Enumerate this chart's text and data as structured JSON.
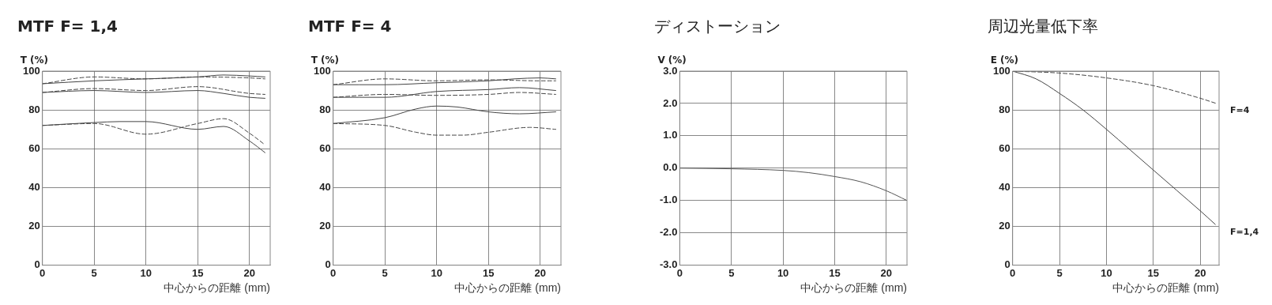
{
  "chart_data": [
    {
      "type": "line",
      "title": "MTF F= 1,4",
      "ylabel": "T (%)",
      "xlabel": "中心からの距離 (mm)",
      "xlim": [
        0,
        22
      ],
      "xticks": [
        0,
        5,
        10,
        15,
        20
      ],
      "ylim": [
        0,
        100
      ],
      "yticks": [
        0,
        20,
        40,
        60,
        80,
        100
      ],
      "grid": true,
      "legend": false,
      "marker": "none",
      "series": [
        {
          "color": "#444444",
          "line_style": "solid",
          "x": [
            0,
            5,
            10,
            15,
            17.5,
            20,
            21.5
          ],
          "values": [
            93.5,
            95,
            96,
            97,
            98,
            97.5,
            97
          ]
        },
        {
          "color": "#444444",
          "line_style": "dashed",
          "x": [
            0,
            5,
            10,
            15,
            20,
            21.5
          ],
          "values": [
            93.5,
            97,
            96,
            97,
            96.5,
            96
          ]
        },
        {
          "color": "#444444",
          "line_style": "solid",
          "x": [
            0,
            5,
            10,
            15,
            17.5,
            20,
            21.5
          ],
          "values": [
            89,
            90,
            89,
            90,
            88.5,
            86.5,
            86
          ]
        },
        {
          "color": "#444444",
          "line_style": "dashed",
          "x": [
            0,
            5,
            10,
            15,
            20,
            21.5
          ],
          "values": [
            89,
            91,
            90,
            92,
            88.5,
            88
          ]
        },
        {
          "color": "#444444",
          "line_style": "solid",
          "x": [
            0,
            5,
            7.5,
            10,
            15,
            17.5,
            20,
            21.5
          ],
          "values": [
            72,
            73.5,
            74,
            74,
            70,
            71.5,
            64,
            58
          ]
        },
        {
          "color": "#444444",
          "line_style": "dashed",
          "x": [
            0,
            5,
            10,
            15,
            17.5,
            20,
            21.5
          ],
          "values": [
            72,
            73,
            67.5,
            73,
            75.5,
            68,
            62
          ]
        }
      ]
    },
    {
      "type": "line",
      "title": "MTF F= 4",
      "ylabel": "T (%)",
      "xlabel": "中心からの距離 (mm)",
      "xlim": [
        0,
        22
      ],
      "xticks": [
        0,
        5,
        10,
        15,
        20
      ],
      "ylim": [
        0,
        100
      ],
      "yticks": [
        0,
        20,
        40,
        60,
        80,
        100
      ],
      "grid": true,
      "legend": false,
      "marker": "none",
      "series": [
        {
          "color": "#444444",
          "line_style": "solid",
          "x": [
            0,
            5,
            10,
            15,
            17.5,
            20,
            21.5
          ],
          "values": [
            93,
            93,
            94,
            95,
            96,
            96.5,
            96
          ]
        },
        {
          "color": "#444444",
          "line_style": "dashed",
          "x": [
            0,
            5,
            10,
            15,
            20,
            21.5
          ],
          "values": [
            93,
            96,
            95,
            95.5,
            95,
            95
          ]
        },
        {
          "color": "#444444",
          "line_style": "solid",
          "x": [
            0,
            5,
            10,
            15,
            18,
            21.5
          ],
          "values": [
            86.5,
            86.5,
            89.5,
            90.5,
            91.5,
            90
          ]
        },
        {
          "color": "#444444",
          "line_style": "dashed",
          "x": [
            0,
            5,
            10,
            15,
            18,
            21.5
          ],
          "values": [
            86.5,
            88,
            87.5,
            88,
            89,
            88
          ]
        },
        {
          "color": "#444444",
          "line_style": "solid",
          "x": [
            0,
            5,
            8,
            10,
            12,
            15,
            18,
            21.5
          ],
          "values": [
            73,
            76,
            80.5,
            82,
            81.5,
            79,
            78,
            79
          ]
        },
        {
          "color": "#444444",
          "line_style": "dashed",
          "x": [
            0,
            5,
            8,
            10,
            12.5,
            15,
            19,
            21.5
          ],
          "values": [
            73,
            72,
            68.5,
            67,
            67,
            68.5,
            71,
            70
          ]
        }
      ]
    },
    {
      "type": "line",
      "title": "ディストーション",
      "ylabel": "V (%)",
      "xlabel": "中心からの距離 (mm)",
      "xlim": [
        0,
        22
      ],
      "xticks": [
        0,
        5,
        10,
        15,
        20
      ],
      "ylim": [
        -3,
        3
      ],
      "yticks": [
        {
          "value": -3,
          "label": "-3.0"
        },
        {
          "value": -2,
          "label": "-2.0"
        },
        {
          "value": -1,
          "label": "-1.0"
        },
        {
          "value": 0,
          "label": "0.0"
        },
        {
          "value": 1,
          "label": "1.0"
        },
        {
          "value": 2,
          "label": "2.0"
        },
        {
          "value": 3,
          "label": "3.0"
        }
      ],
      "grid": true,
      "legend": false,
      "marker": "none",
      "series": [
        {
          "color": "#555555",
          "line_style": "solid",
          "x": [
            0,
            5,
            10,
            12.5,
            15,
            17.5,
            20,
            22
          ],
          "values": [
            0,
            -0.02,
            -0.07,
            -0.14,
            -0.26,
            -0.42,
            -0.7,
            -1.0
          ]
        }
      ]
    },
    {
      "type": "line",
      "title": "周辺光量低下率",
      "ylabel": "E (%)",
      "xlabel": "中心からの距離 (mm)",
      "xlim": [
        0,
        22
      ],
      "xticks": [
        0,
        5,
        10,
        15,
        20
      ],
      "ylim": [
        0,
        100
      ],
      "yticks": [
        0,
        20,
        40,
        60,
        80,
        100
      ],
      "grid": true,
      "legend": false,
      "marker": "none",
      "series": [
        {
          "name": "F=4",
          "color": "#444444",
          "line_style": "dashed",
          "x": [
            0,
            5,
            10,
            15,
            20,
            21.6
          ],
          "values": [
            100,
            99,
            96.5,
            92.5,
            86,
            83.5
          ]
        },
        {
          "name": "F=1,4",
          "color": "#444444",
          "line_style": "solid",
          "x": [
            0,
            2.5,
            5,
            7.5,
            10,
            12.5,
            15,
            17.5,
            20,
            21.6
          ],
          "values": [
            100,
            96,
            88.5,
            80,
            70,
            59.5,
            49,
            38.5,
            28,
            21
          ]
        }
      ]
    }
  ]
}
